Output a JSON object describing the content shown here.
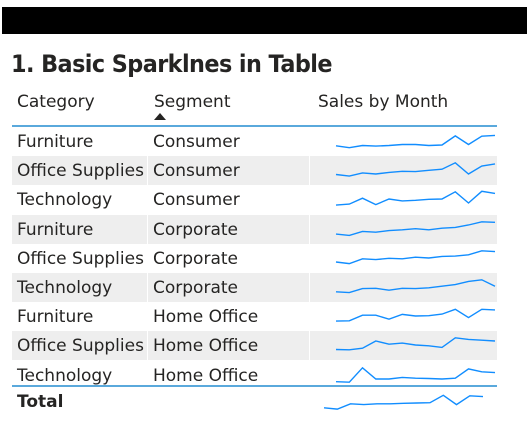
{
  "visual": {
    "title": "1. Basic Sparklnes in Table",
    "columns": {
      "category": "Category",
      "segment": "Segment",
      "sales": "Sales by Month"
    },
    "sort_icon": "sort-ascending-triangle-icon",
    "sparkline_color": "#118dff",
    "rows": [
      {
        "category": "Furniture",
        "segment": "Consumer",
        "sales_by_month": [
          0.2,
          0.08,
          0.22,
          0.18,
          0.22,
          0.28,
          0.28,
          0.22,
          0.25,
          0.82,
          0.28,
          0.8,
          0.85
        ]
      },
      {
        "category": "Office Supplies",
        "segment": "Consumer",
        "sales_by_month": [
          0.22,
          0.12,
          0.32,
          0.25,
          0.35,
          0.42,
          0.4,
          0.48,
          0.55,
          0.95,
          0.25,
          0.75,
          0.88
        ]
      },
      {
        "category": "Technology",
        "segment": "Consumer",
        "sales_by_month": [
          0.12,
          0.18,
          0.55,
          0.15,
          0.5,
          0.38,
          0.42,
          0.48,
          0.5,
          0.95,
          0.25,
          0.98,
          0.85
        ]
      },
      {
        "category": "Furniture",
        "segment": "Corporate",
        "sales_by_month": [
          0.18,
          0.1,
          0.35,
          0.3,
          0.4,
          0.45,
          0.52,
          0.45,
          0.55,
          0.6,
          0.75,
          0.95,
          0.92
        ]
      },
      {
        "category": "Office Supplies",
        "segment": "Corporate",
        "sales_by_month": [
          0.25,
          0.15,
          0.45,
          0.4,
          0.48,
          0.45,
          0.55,
          0.5,
          0.6,
          0.62,
          0.7,
          0.95,
          0.9
        ]
      },
      {
        "category": "Technology",
        "segment": "Corporate",
        "sales_by_month": [
          0.2,
          0.15,
          0.4,
          0.42,
          0.3,
          0.42,
          0.4,
          0.45,
          0.55,
          0.65,
          0.85,
          0.95,
          0.55
        ]
      },
      {
        "category": "Furniture",
        "segment": "Home Office",
        "sales_by_month": [
          0.18,
          0.2,
          0.55,
          0.55,
          0.3,
          0.6,
          0.5,
          0.52,
          0.62,
          0.92,
          0.4,
          0.92,
          0.88
        ]
      },
      {
        "category": "Office Supplies",
        "segment": "Home Office",
        "sales_by_month": [
          0.22,
          0.2,
          0.3,
          0.75,
          0.55,
          0.62,
          0.5,
          0.45,
          0.35,
          0.95,
          0.85,
          0.8,
          0.75
        ]
      },
      {
        "category": "Technology",
        "segment": "Home Office",
        "sales_by_month": [
          0.08,
          0.05,
          0.95,
          0.25,
          0.25,
          0.35,
          0.3,
          0.28,
          0.25,
          0.3,
          0.88,
          0.7,
          0.65
        ]
      }
    ],
    "total": {
      "label": "Total",
      "sales_by_month": [
        0.2,
        0.12,
        0.45,
        0.4,
        0.45,
        0.45,
        0.48,
        0.5,
        0.52,
        0.98,
        0.4,
        0.95,
        0.9
      ]
    }
  }
}
